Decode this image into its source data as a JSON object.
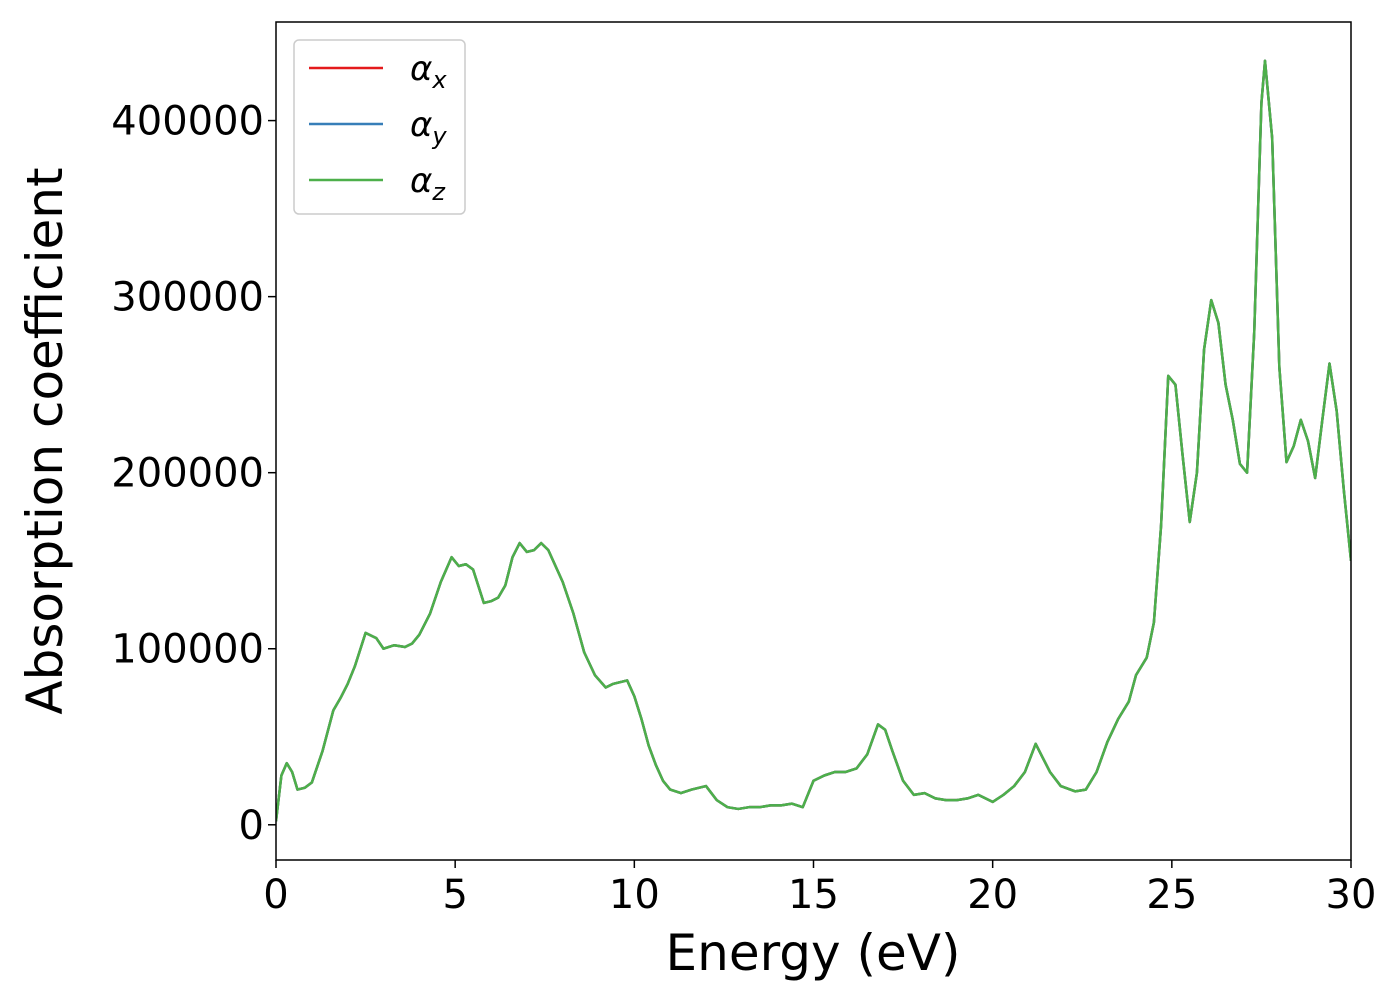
{
  "chart_data": {
    "type": "line",
    "xlabel": "Energy (eV)",
    "ylabel": "Absorption coefficient",
    "xlim": [
      0,
      30
    ],
    "ylim": [
      -20000,
      456000
    ],
    "xticks": [
      0,
      5,
      10,
      15,
      20,
      25,
      30
    ],
    "xtick_labels": [
      "0",
      "5",
      "10",
      "15",
      "20",
      "25",
      "30"
    ],
    "yticks": [
      0,
      100000,
      200000,
      300000,
      400000
    ],
    "ytick_labels": [
      "0",
      "100000",
      "200000",
      "300000",
      "400000"
    ],
    "grid": false,
    "legend_position": "top-left",
    "series": [
      {
        "name": "α_x",
        "symbol": "α",
        "subscript": "x",
        "color": "#e41a1c",
        "x": [
          0,
          0.15,
          0.3,
          0.45,
          0.6,
          0.8,
          1.0,
          1.3,
          1.6,
          1.8,
          2.0,
          2.2,
          2.5,
          2.8,
          3.0,
          3.3,
          3.6,
          3.8,
          4.0,
          4.3,
          4.6,
          4.9,
          5.1,
          5.3,
          5.5,
          5.8,
          6.0,
          6.2,
          6.4,
          6.6,
          6.8,
          7.0,
          7.2,
          7.4,
          7.6,
          7.8,
          8.0,
          8.3,
          8.6,
          8.9,
          9.2,
          9.4,
          9.6,
          9.8,
          10.0,
          10.2,
          10.4,
          10.6,
          10.8,
          11.0,
          11.3,
          11.6,
          12.0,
          12.3,
          12.6,
          12.9,
          13.2,
          13.5,
          13.8,
          14.1,
          14.4,
          14.7,
          15.0,
          15.3,
          15.6,
          15.9,
          16.2,
          16.5,
          16.8,
          17.0,
          17.2,
          17.5,
          17.8,
          18.1,
          18.4,
          18.7,
          19.0,
          19.3,
          19.6,
          20.0,
          20.3,
          20.6,
          20.9,
          21.2,
          21.4,
          21.6,
          21.9,
          22.3,
          22.6,
          22.9,
          23.2,
          23.5,
          23.8,
          24.0,
          24.3,
          24.5,
          24.7,
          24.9,
          25.1,
          25.3,
          25.5,
          25.7,
          25.9,
          26.1,
          26.3,
          26.5,
          26.7,
          26.9,
          27.1,
          27.3,
          27.5,
          27.6,
          27.8,
          28.0,
          28.2,
          28.4,
          28.6,
          28.8,
          29.0,
          29.2,
          29.4,
          29.6,
          29.8,
          30.0
        ],
        "y": [
          2000,
          28000,
          35000,
          30000,
          20000,
          21000,
          24000,
          42000,
          65000,
          72000,
          80000,
          90000,
          109000,
          106000,
          100000,
          102000,
          101000,
          103000,
          108000,
          120000,
          138000,
          152000,
          147000,
          148000,
          145000,
          126000,
          127000,
          129000,
          136000,
          152000,
          160000,
          155000,
          156000,
          160000,
          156000,
          147000,
          138000,
          120000,
          98000,
          85000,
          78000,
          80000,
          81000,
          82000,
          73000,
          60000,
          45000,
          34000,
          25000,
          20000,
          18000,
          20000,
          22000,
          14000,
          10000,
          9000,
          10000,
          10000,
          11000,
          11000,
          12000,
          10000,
          25000,
          28000,
          30000,
          30000,
          32000,
          40000,
          57000,
          54000,
          42000,
          25000,
          17000,
          18000,
          15000,
          14000,
          14000,
          15000,
          17000,
          13000,
          17000,
          22000,
          30000,
          46000,
          38000,
          30000,
          22000,
          19000,
          20000,
          30000,
          47000,
          60000,
          70000,
          85000,
          95000,
          115000,
          170000,
          255000,
          250000,
          210000,
          172000,
          200000,
          270000,
          298000,
          285000,
          250000,
          230000,
          205000,
          200000,
          280000,
          410000,
          434000,
          390000,
          260000,
          206000,
          215000,
          230000,
          218000,
          197000,
          230000,
          262000,
          235000,
          190000,
          150000
        ]
      },
      {
        "name": "α_y",
        "symbol": "α",
        "subscript": "y",
        "color": "#377eb8",
        "x": [
          0,
          0.15,
          0.3,
          0.45,
          0.6,
          0.8,
          1.0,
          1.3,
          1.6,
          1.8,
          2.0,
          2.2,
          2.5,
          2.8,
          3.0,
          3.3,
          3.6,
          3.8,
          4.0,
          4.3,
          4.6,
          4.9,
          5.1,
          5.3,
          5.5,
          5.8,
          6.0,
          6.2,
          6.4,
          6.6,
          6.8,
          7.0,
          7.2,
          7.4,
          7.6,
          7.8,
          8.0,
          8.3,
          8.6,
          8.9,
          9.2,
          9.4,
          9.6,
          9.8,
          10.0,
          10.2,
          10.4,
          10.6,
          10.8,
          11.0,
          11.3,
          11.6,
          12.0,
          12.3,
          12.6,
          12.9,
          13.2,
          13.5,
          13.8,
          14.1,
          14.4,
          14.7,
          15.0,
          15.3,
          15.6,
          15.9,
          16.2,
          16.5,
          16.8,
          17.0,
          17.2,
          17.5,
          17.8,
          18.1,
          18.4,
          18.7,
          19.0,
          19.3,
          19.6,
          20.0,
          20.3,
          20.6,
          20.9,
          21.2,
          21.4,
          21.6,
          21.9,
          22.3,
          22.6,
          22.9,
          23.2,
          23.5,
          23.8,
          24.0,
          24.3,
          24.5,
          24.7,
          24.9,
          25.1,
          25.3,
          25.5,
          25.7,
          25.9,
          26.1,
          26.3,
          26.5,
          26.7,
          26.9,
          27.1,
          27.3,
          27.5,
          27.6,
          27.8,
          28.0,
          28.2,
          28.4,
          28.6,
          28.8,
          29.0,
          29.2,
          29.4,
          29.6,
          29.8,
          30.0
        ],
        "y": [
          2000,
          28000,
          35000,
          30000,
          20000,
          21000,
          24000,
          42000,
          65000,
          72000,
          80000,
          90000,
          109000,
          106000,
          100000,
          102000,
          101000,
          103000,
          108000,
          120000,
          138000,
          152000,
          147000,
          148000,
          145000,
          126000,
          127000,
          129000,
          136000,
          152000,
          160000,
          155000,
          156000,
          160000,
          156000,
          147000,
          138000,
          120000,
          98000,
          85000,
          78000,
          80000,
          81000,
          82000,
          73000,
          60000,
          45000,
          34000,
          25000,
          20000,
          18000,
          20000,
          22000,
          14000,
          10000,
          9000,
          10000,
          10000,
          11000,
          11000,
          12000,
          10000,
          25000,
          28000,
          30000,
          30000,
          32000,
          40000,
          57000,
          54000,
          42000,
          25000,
          17000,
          18000,
          15000,
          14000,
          14000,
          15000,
          17000,
          13000,
          17000,
          22000,
          30000,
          46000,
          38000,
          30000,
          22000,
          19000,
          20000,
          30000,
          47000,
          60000,
          70000,
          85000,
          95000,
          115000,
          170000,
          255000,
          250000,
          210000,
          172000,
          200000,
          270000,
          298000,
          285000,
          250000,
          230000,
          205000,
          200000,
          280000,
          410000,
          434000,
          390000,
          260000,
          206000,
          215000,
          230000,
          218000,
          197000,
          230000,
          262000,
          235000,
          190000,
          150000
        ]
      },
      {
        "name": "α_z",
        "symbol": "α",
        "subscript": "z",
        "color": "#4daf4a",
        "x": [
          0,
          0.15,
          0.3,
          0.45,
          0.6,
          0.8,
          1.0,
          1.3,
          1.6,
          1.8,
          2.0,
          2.2,
          2.5,
          2.8,
          3.0,
          3.3,
          3.6,
          3.8,
          4.0,
          4.3,
          4.6,
          4.9,
          5.1,
          5.3,
          5.5,
          5.8,
          6.0,
          6.2,
          6.4,
          6.6,
          6.8,
          7.0,
          7.2,
          7.4,
          7.6,
          7.8,
          8.0,
          8.3,
          8.6,
          8.9,
          9.2,
          9.4,
          9.6,
          9.8,
          10.0,
          10.2,
          10.4,
          10.6,
          10.8,
          11.0,
          11.3,
          11.6,
          12.0,
          12.3,
          12.6,
          12.9,
          13.2,
          13.5,
          13.8,
          14.1,
          14.4,
          14.7,
          15.0,
          15.3,
          15.6,
          15.9,
          16.2,
          16.5,
          16.8,
          17.0,
          17.2,
          17.5,
          17.8,
          18.1,
          18.4,
          18.7,
          19.0,
          19.3,
          19.6,
          20.0,
          20.3,
          20.6,
          20.9,
          21.2,
          21.4,
          21.6,
          21.9,
          22.3,
          22.6,
          22.9,
          23.2,
          23.5,
          23.8,
          24.0,
          24.3,
          24.5,
          24.7,
          24.9,
          25.1,
          25.3,
          25.5,
          25.7,
          25.9,
          26.1,
          26.3,
          26.5,
          26.7,
          26.9,
          27.1,
          27.3,
          27.5,
          27.6,
          27.8,
          28.0,
          28.2,
          28.4,
          28.6,
          28.8,
          29.0,
          29.2,
          29.4,
          29.6,
          29.8,
          30.0
        ],
        "y": [
          2000,
          28000,
          35000,
          30000,
          20000,
          21000,
          24000,
          42000,
          65000,
          72000,
          80000,
          90000,
          109000,
          106000,
          100000,
          102000,
          101000,
          103000,
          108000,
          120000,
          138000,
          152000,
          147000,
          148000,
          145000,
          126000,
          127000,
          129000,
          136000,
          152000,
          160000,
          155000,
          156000,
          160000,
          156000,
          147000,
          138000,
          120000,
          98000,
          85000,
          78000,
          80000,
          81000,
          82000,
          73000,
          60000,
          45000,
          34000,
          25000,
          20000,
          18000,
          20000,
          22000,
          14000,
          10000,
          9000,
          10000,
          10000,
          11000,
          11000,
          12000,
          10000,
          25000,
          28000,
          30000,
          30000,
          32000,
          40000,
          57000,
          54000,
          42000,
          25000,
          17000,
          18000,
          15000,
          14000,
          14000,
          15000,
          17000,
          13000,
          17000,
          22000,
          30000,
          46000,
          38000,
          30000,
          22000,
          19000,
          20000,
          30000,
          47000,
          60000,
          70000,
          85000,
          95000,
          115000,
          170000,
          255000,
          250000,
          210000,
          172000,
          200000,
          270000,
          298000,
          285000,
          250000,
          230000,
          205000,
          200000,
          280000,
          410000,
          434000,
          390000,
          260000,
          206000,
          215000,
          230000,
          218000,
          197000,
          230000,
          262000,
          235000,
          190000,
          150000
        ]
      }
    ]
  }
}
